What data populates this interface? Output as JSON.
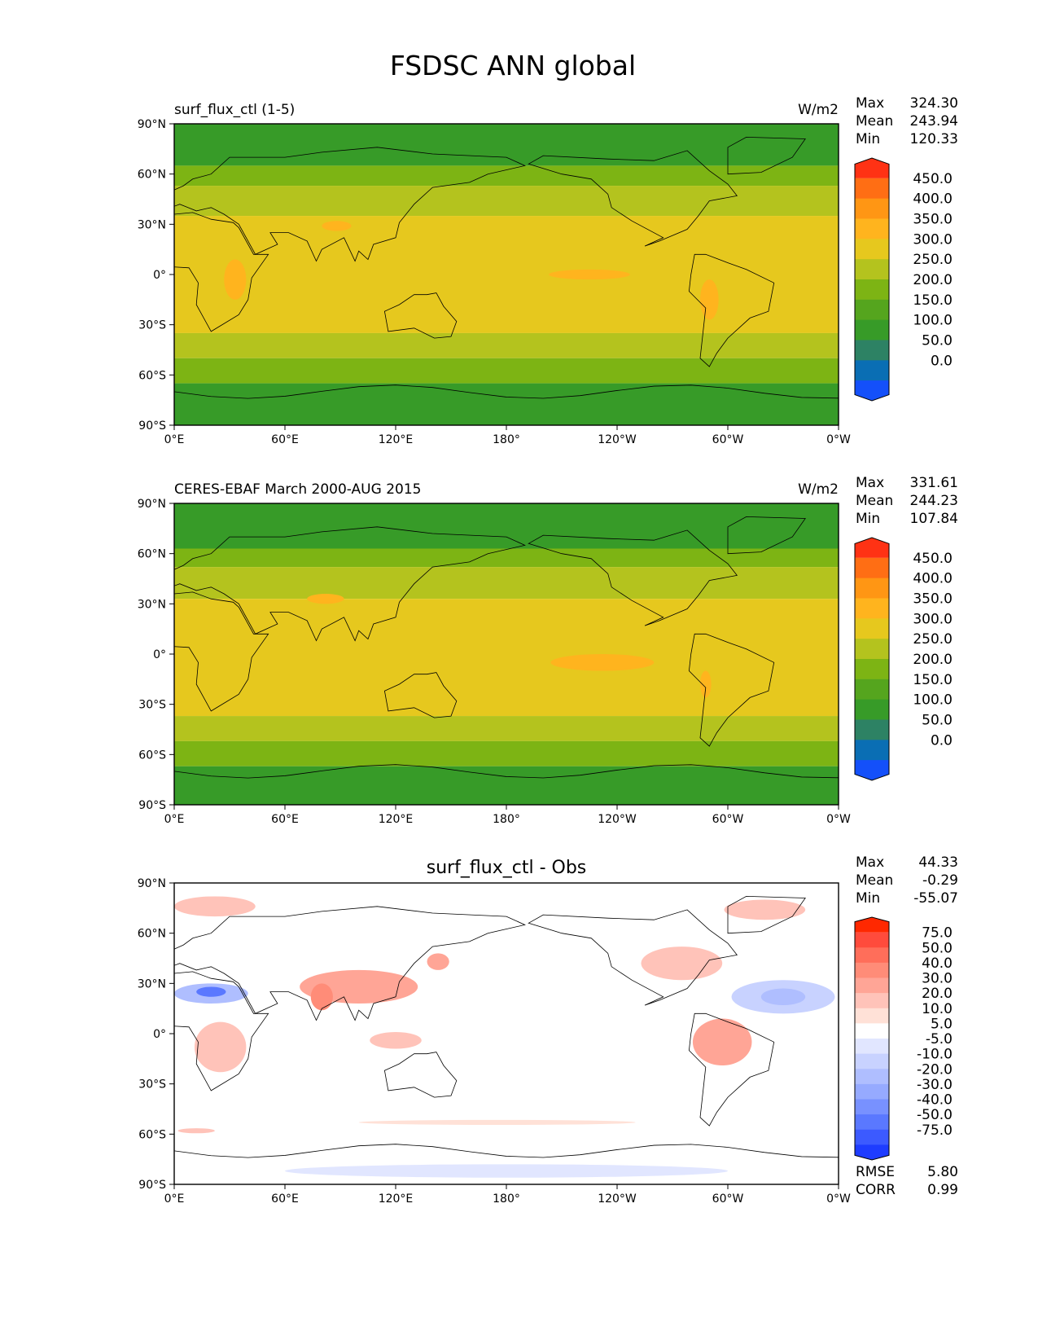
{
  "title": "FSDSC ANN global",
  "panels": [
    {
      "left_title": "surf_flux_ctl (1-5)",
      "center_title": "",
      "units": "W/m2",
      "stats": [
        {
          "label": "Max",
          "value": "324.30"
        },
        {
          "label": "Mean",
          "value": "243.94"
        },
        {
          "label": "Min",
          "value": "120.33"
        }
      ],
      "colorbar": {
        "labels": [
          "450.0",
          "400.0",
          "350.0",
          "300.0",
          "250.0",
          "200.0",
          "150.0",
          "100.0",
          "50.0",
          "0.0"
        ],
        "colors": [
          "#ff3214",
          "#ff6e14",
          "#ff9614",
          "#ffb41e",
          "#e6c81e",
          "#b4c31e",
          "#7db414",
          "#55a51e",
          "#379b28",
          "#2d8264",
          "#0a6eb4",
          "#1450fa"
        ]
      },
      "field": {
        "bands": [
          {
            "lat": [
              90,
              65
            ],
            "color": "#379b28"
          },
          {
            "lat": [
              65,
              53
            ],
            "color": "#7db414"
          },
          {
            "lat": [
              53,
              35
            ],
            "color": "#b4c31e"
          },
          {
            "lat": [
              35,
              -35
            ],
            "color": "#e6c81e"
          },
          {
            "lat": [
              -35,
              -50
            ],
            "color": "#b4c31e"
          },
          {
            "lat": [
              -50,
              -65
            ],
            "color": "#7db414"
          },
          {
            "lat": [
              -65,
              -90
            ],
            "color": "#379b28"
          }
        ],
        "blobs": [
          {
            "lon": 225,
            "lat": 0,
            "rx": 22,
            "ry": 3,
            "color": "#ffb41e"
          },
          {
            "lon": 33,
            "lat": -3,
            "rx": 6,
            "ry": 12,
            "color": "#ffb41e"
          },
          {
            "lon": 290,
            "lat": -15,
            "rx": 5,
            "ry": 12,
            "color": "#ffb41e"
          },
          {
            "lon": 88,
            "lat": 29,
            "rx": 8,
            "ry": 3,
            "color": "#ffb41e"
          }
        ]
      },
      "extra_stats": []
    },
    {
      "left_title": "CERES-EBAF March 2000-AUG 2015",
      "center_title": "",
      "units": "W/m2",
      "stats": [
        {
          "label": "Max",
          "value": "331.61"
        },
        {
          "label": "Mean",
          "value": "244.23"
        },
        {
          "label": "Min",
          "value": "107.84"
        }
      ],
      "colorbar": {
        "labels": [
          "450.0",
          "400.0",
          "350.0",
          "300.0",
          "250.0",
          "200.0",
          "150.0",
          "100.0",
          "50.0",
          "0.0"
        ],
        "colors": [
          "#ff3214",
          "#ff6e14",
          "#ff9614",
          "#ffb41e",
          "#e6c81e",
          "#b4c31e",
          "#7db414",
          "#55a51e",
          "#379b28",
          "#2d8264",
          "#0a6eb4",
          "#1450fa"
        ]
      },
      "field": {
        "bands": [
          {
            "lat": [
              90,
              63
            ],
            "color": "#379b28"
          },
          {
            "lat": [
              63,
              52
            ],
            "color": "#7db414"
          },
          {
            "lat": [
              52,
              33
            ],
            "color": "#b4c31e"
          },
          {
            "lat": [
              33,
              -37
            ],
            "color": "#e6c81e"
          },
          {
            "lat": [
              -37,
              -52
            ],
            "color": "#b4c31e"
          },
          {
            "lat": [
              -52,
              -67
            ],
            "color": "#7db414"
          },
          {
            "lat": [
              -67,
              -90
            ],
            "color": "#379b28"
          }
        ],
        "blobs": [
          {
            "lon": 232,
            "lat": -5,
            "rx": 28,
            "ry": 5,
            "color": "#ffb41e"
          },
          {
            "lon": 82,
            "lat": 33,
            "rx": 10,
            "ry": 3,
            "color": "#ffb41e"
          },
          {
            "lon": 288,
            "lat": -18,
            "rx": 3,
            "ry": 8,
            "color": "#ffb41e"
          }
        ]
      },
      "extra_stats": []
    },
    {
      "left_title": "",
      "center_title": "surf_flux_ctl - Obs",
      "units": "",
      "stats": [
        {
          "label": "Max",
          "value": "44.33"
        },
        {
          "label": "Mean",
          "value": "-0.29"
        },
        {
          "label": "Min",
          "value": "-55.07"
        }
      ],
      "colorbar": {
        "labels": [
          "75.0",
          "50.0",
          "40.0",
          "30.0",
          "20.0",
          "10.0",
          "5.0",
          "-5.0",
          "-10.0",
          "-20.0",
          "-30.0",
          "-40.0",
          "-50.0",
          "-75.0"
        ],
        "colors": [
          "#ff2800",
          "#ff4b3c",
          "#ff6e5a",
          "#ff8c78",
          "#ffa596",
          "#ffc3b9",
          "#ffe1d7",
          "#ffffff",
          "#e1e6ff",
          "#c8d2ff",
          "#afbeff",
          "#96aaff",
          "#7891ff",
          "#5a78ff",
          "#3c5aff",
          "#1e3cff"
        ]
      },
      "field": {
        "bands": [
          {
            "lat": [
              90,
              -90
            ],
            "color": "#ffffff"
          }
        ],
        "blobs": [
          {
            "lon": 22,
            "lat": 76,
            "rx": 22,
            "ry": 6,
            "color": "#ffc3b9"
          },
          {
            "lon": 100,
            "lat": 28,
            "rx": 32,
            "ry": 10,
            "color": "#ffa596"
          },
          {
            "lon": 80,
            "lat": 22,
            "rx": 6,
            "ry": 8,
            "color": "#ff8c78"
          },
          {
            "lon": 20,
            "lat": 24,
            "rx": 20,
            "ry": 6,
            "color": "#afbeff"
          },
          {
            "lon": 20,
            "lat": 25,
            "rx": 8,
            "ry": 3,
            "color": "#5a78ff"
          },
          {
            "lon": 25,
            "lat": -8,
            "rx": 14,
            "ry": 15,
            "color": "#ffc3b9"
          },
          {
            "lon": 120,
            "lat": -4,
            "rx": 14,
            "ry": 5,
            "color": "#ffc3b9"
          },
          {
            "lon": 297,
            "lat": -5,
            "rx": 16,
            "ry": 14,
            "color": "#ffa596"
          },
          {
            "lon": 275,
            "lat": 42,
            "rx": 22,
            "ry": 10,
            "color": "#ffc3b9"
          },
          {
            "lon": 330,
            "lat": 22,
            "rx": 28,
            "ry": 10,
            "color": "#c8d2ff"
          },
          {
            "lon": 330,
            "lat": 22,
            "rx": 12,
            "ry": 5,
            "color": "#afbeff"
          },
          {
            "lon": 320,
            "lat": 74,
            "rx": 22,
            "ry": 6,
            "color": "#ffc3b9"
          },
          {
            "lon": 143,
            "lat": 43,
            "rx": 6,
            "ry": 5,
            "color": "#ffa596"
          },
          {
            "lon": 12,
            "lat": -58,
            "rx": 10,
            "ry": 1.5,
            "color": "#ffc3b9"
          },
          {
            "lon": 175,
            "lat": -53,
            "rx": 75,
            "ry": 1.5,
            "color": "#ffe1d7"
          },
          {
            "lon": 180,
            "lat": -82,
            "rx": 120,
            "ry": 4,
            "color": "#e1e6ff"
          }
        ]
      },
      "extra_stats": [
        {
          "label": "RMSE",
          "value": "5.80"
        },
        {
          "label": "CORR",
          "value": "0.99"
        }
      ]
    }
  ],
  "axes": {
    "yticks": [
      "90°N",
      "60°N",
      "30°N",
      "0°",
      "30°S",
      "60°S",
      "90°S"
    ],
    "xticks": [
      "0°E",
      "60°E",
      "120°E",
      "180°",
      "120°W",
      "60°W",
      "0°W"
    ],
    "lat_range": [
      -90,
      90
    ],
    "lon_range": [
      0,
      360
    ]
  }
}
